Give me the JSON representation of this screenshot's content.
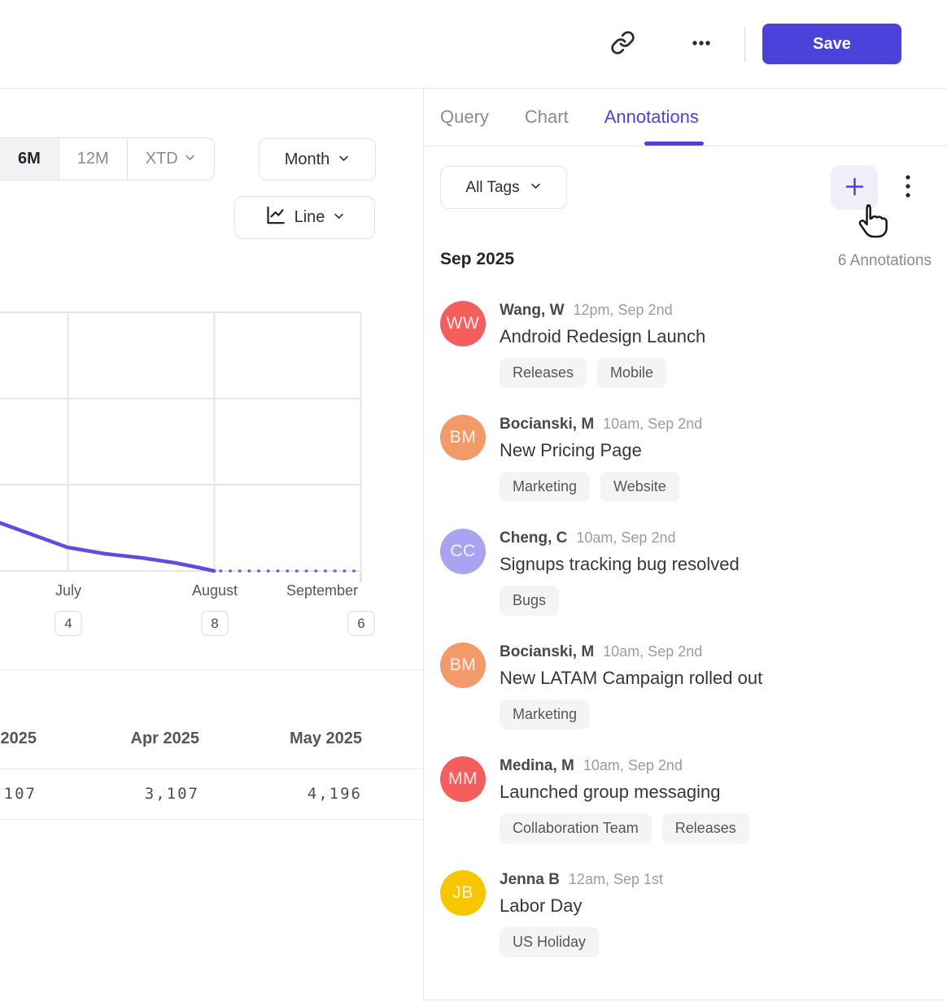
{
  "theme": {
    "accent": "#4b41db",
    "line_color": "#5b4fe0",
    "dotted_line_color": "#6b61e4",
    "grid_color": "#e6e6e8",
    "tag_bg": "#f4f4f5"
  },
  "icons": {
    "link": "chain-link",
    "more": "horizontal-ellipsis",
    "kebab": "vertical-dots",
    "add": "plus",
    "chevron": "chevron-down",
    "chart_type": "line-chart",
    "cursor": "hand-pointer"
  },
  "header": {
    "save_label": "Save"
  },
  "panel_tabs": {
    "items": [
      {
        "label": "Query",
        "active": false
      },
      {
        "label": "Chart",
        "active": false
      },
      {
        "label": "Annotations",
        "active": true
      }
    ]
  },
  "chart_panel": {
    "range_tabs": [
      {
        "label": "6M",
        "active": true
      },
      {
        "label": "12M",
        "active": false
      },
      {
        "label": "XTD",
        "active": false
      }
    ],
    "granularity": "Month",
    "chart_type": "Line",
    "months": [
      {
        "label": "July",
        "count": 4
      },
      {
        "label": "August",
        "count": 8
      },
      {
        "label": "September",
        "count": 6
      }
    ]
  },
  "summary_table": {
    "headers": [
      "2025",
      "Apr 2025",
      "May 2025"
    ],
    "values": [
      "107",
      "3,107",
      "4,196"
    ]
  },
  "annotations_panel": {
    "filter_label": "All Tags",
    "group_header": "Sep 2025",
    "group_count": "6 Annotations",
    "items": [
      {
        "initials": "WW",
        "color": "#f45f5e",
        "author": "Wang, W",
        "time": "12pm, Sep 2nd",
        "title": "Android Redesign Launch",
        "tags": [
          "Releases",
          "Mobile"
        ]
      },
      {
        "initials": "BM",
        "color": "#f39a6a",
        "author": "Bocianski, M",
        "time": "10am, Sep 2nd",
        "title": "New Pricing Page",
        "tags": [
          "Marketing",
          "Website"
        ]
      },
      {
        "initials": "CC",
        "color": "#aba2f1",
        "author": "Cheng, C",
        "time": "10am, Sep 2nd",
        "title": "Signups tracking bug resolved",
        "tags": [
          "Bugs"
        ]
      },
      {
        "initials": "BM",
        "color": "#f39a6a",
        "author": "Bocianski, M",
        "time": "10am, Sep 2nd",
        "title": "New LATAM Campaign rolled out",
        "tags": [
          "Marketing"
        ]
      },
      {
        "initials": "MM",
        "color": "#f45f5e",
        "author": "Medina, M",
        "time": "10am, Sep 2nd",
        "title": "Launched group messaging",
        "tags": [
          "Collaboration Team",
          "Releases"
        ]
      },
      {
        "initials": "JB",
        "color": "#f6c700",
        "author": "Jenna B",
        "time": "12am, Sep 1st",
        "title": "Labor Day",
        "tags": [
          "US Holiday"
        ]
      }
    ]
  },
  "chart_data": {
    "type": "line",
    "title": "",
    "xlabel": "",
    "ylabel": "",
    "x_ticks": [
      "July",
      "August",
      "September"
    ],
    "annotation_count_badges": [
      4,
      8,
      6
    ],
    "grid": true,
    "legend": "none",
    "series": [
      {
        "name": "metric (solid, actual)",
        "points_frac_of_plot_height": [
          [
            "left-edge (pre-July)",
            0.19
          ],
          [
            "July",
            0.09
          ],
          [
            "August",
            0.0
          ]
        ],
        "note": "y-axis labels not visible in screenshot; values estimated as fraction of plot height above the August low"
      },
      {
        "name": "metric (dotted, projection)",
        "points_frac_of_plot_height": [
          [
            "August",
            0.0
          ],
          [
            "September",
            0.0
          ]
        ]
      }
    ],
    "pixel_geometry": {
      "h_grid_y": [
        1,
        107,
        213,
        319
      ],
      "v_grid_x": [
        83.5,
        263.5,
        443.5
      ],
      "grid_right": 443.5,
      "solid_points": [
        [
          -8,
          257
        ],
        [
          83,
          290
        ],
        [
          130,
          298
        ],
        [
          175,
          303
        ],
        [
          215,
          309
        ],
        [
          245,
          315
        ],
        [
          263,
          319
        ]
      ],
      "dotted_y": 319,
      "dotted_x": [
        271,
        443
      ],
      "end_tick_x": 443.5,
      "end_tick_y": [
        320,
        333
      ]
    }
  }
}
